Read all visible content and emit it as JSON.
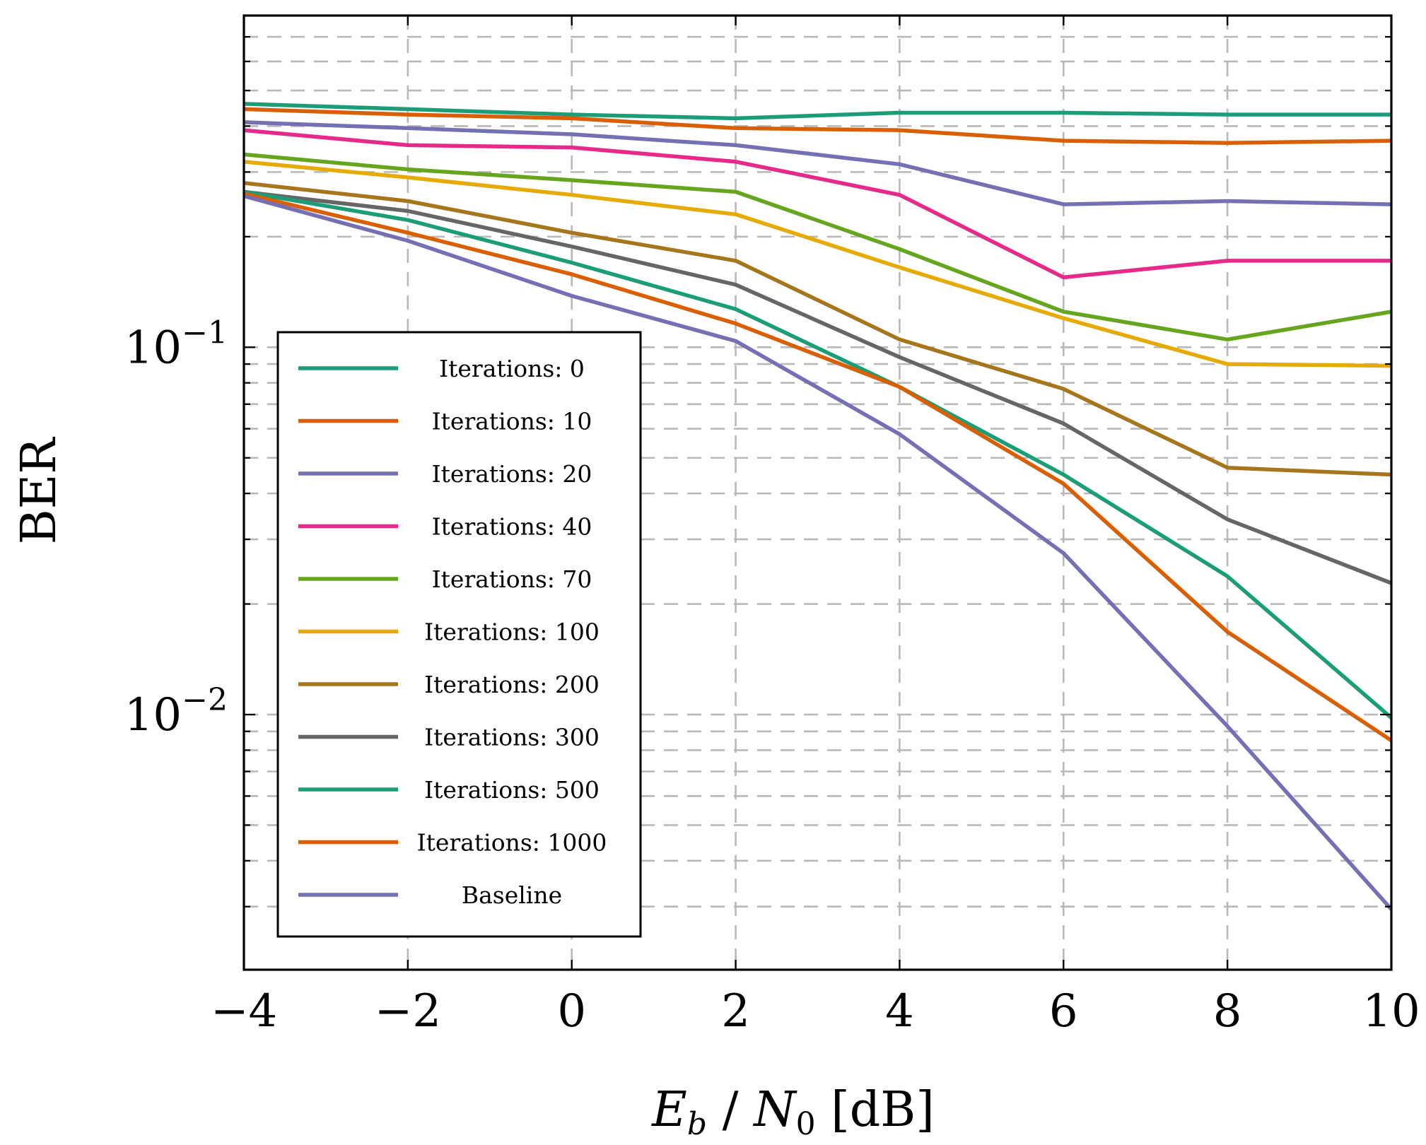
{
  "chart_data": {
    "type": "line",
    "xlabel": "E_b / N_0 [dB]",
    "ylabel": "BER",
    "x_scale": "linear",
    "y_scale": "log",
    "xlim": [
      -4,
      10
    ],
    "ylim": [
      0.00202,
      0.8
    ],
    "x": [
      -4,
      -2,
      0,
      2,
      4,
      6,
      8,
      10
    ],
    "x_ticks": [
      -4,
      -2,
      0,
      2,
      4,
      6,
      8,
      10
    ],
    "x_tick_labels": [
      "−4",
      "−2",
      "0",
      "2",
      "4",
      "6",
      "8",
      "10"
    ],
    "y_ticks": [
      0.1,
      0.01
    ],
    "y_tick_labels": [
      {
        "base": "10",
        "exp": "−1"
      },
      {
        "base": "10",
        "exp": "−2"
      }
    ],
    "grid": true,
    "legend_position": "left, lower-middle",
    "series": [
      {
        "name": "Iterations: 0",
        "color": "#1b9e77",
        "values": [
          0.46,
          0.445,
          0.43,
          0.42,
          0.435,
          0.435,
          0.43,
          0.43
        ]
      },
      {
        "name": "Iterations: 10",
        "color": "#d95f02",
        "values": [
          0.445,
          0.43,
          0.42,
          0.395,
          0.39,
          0.365,
          0.36,
          0.365
        ]
      },
      {
        "name": "Iterations: 20",
        "color": "#7570b3",
        "values": [
          0.41,
          0.395,
          0.38,
          0.355,
          0.315,
          0.245,
          0.25,
          0.245
        ]
      },
      {
        "name": "Iterations: 40",
        "color": "#e7298a",
        "values": [
          0.39,
          0.355,
          0.35,
          0.32,
          0.26,
          0.155,
          0.172,
          0.172
        ]
      },
      {
        "name": "Iterations: 70",
        "color": "#66a61e",
        "values": [
          0.335,
          0.305,
          0.285,
          0.265,
          0.185,
          0.125,
          0.105,
          0.125
        ]
      },
      {
        "name": "Iterations: 100",
        "color": "#e6ab02",
        "values": [
          0.32,
          0.29,
          0.26,
          0.23,
          0.165,
          0.12,
          0.09,
          0.089
        ]
      },
      {
        "name": "Iterations: 200",
        "color": "#a6761d",
        "values": [
          0.28,
          0.25,
          0.205,
          0.172,
          0.105,
          0.077,
          0.047,
          0.045
        ]
      },
      {
        "name": "Iterations: 300",
        "color": "#666666",
        "values": [
          0.265,
          0.235,
          0.188,
          0.148,
          0.094,
          0.062,
          0.034,
          0.0228
        ]
      },
      {
        "name": "Iterations: 500",
        "color": "#1b9e77",
        "values": [
          0.265,
          0.222,
          0.17,
          0.127,
          0.078,
          0.045,
          0.0238,
          0.0098
        ]
      },
      {
        "name": "Iterations: 1000",
        "color": "#d95f02",
        "values": [
          0.262,
          0.205,
          0.158,
          0.116,
          0.078,
          0.0425,
          0.0168,
          0.0085
        ]
      },
      {
        "name": "Baseline",
        "color": "#7570b3",
        "values": [
          0.258,
          0.195,
          0.138,
          0.104,
          0.058,
          0.0275,
          0.0093,
          0.00295
        ]
      }
    ]
  }
}
